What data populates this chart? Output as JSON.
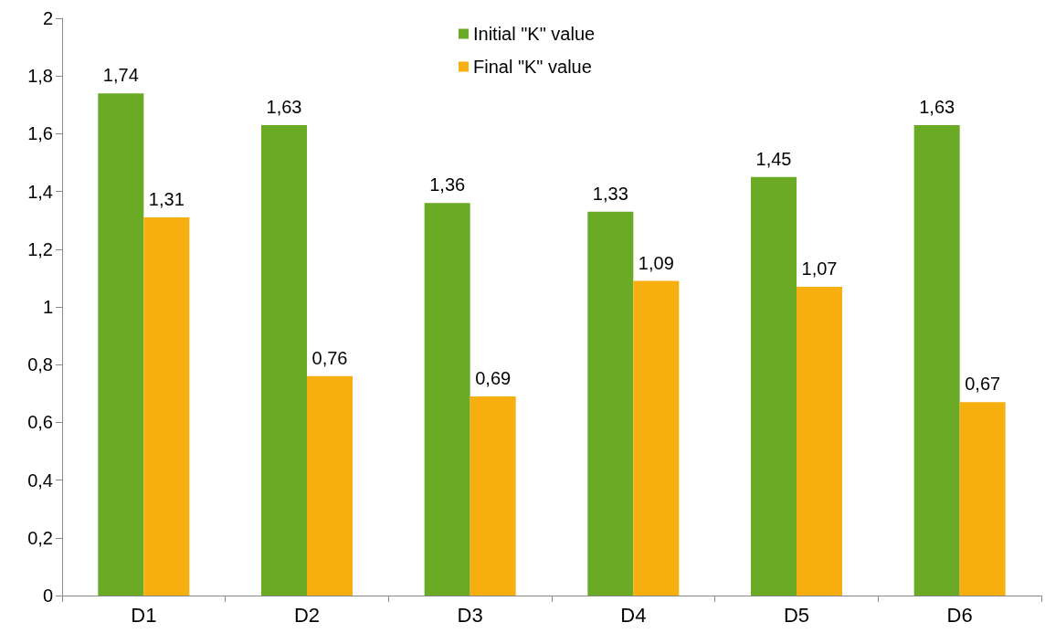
{
  "chart_data": {
    "type": "bar",
    "categories": [
      "D1",
      "D2",
      "D3",
      "D4",
      "D5",
      "D6"
    ],
    "series": [
      {
        "name": "Initial \"K\" value",
        "color": "#6aaa25",
        "values": [
          1.74,
          1.63,
          1.36,
          1.33,
          1.45,
          1.63
        ],
        "value_labels": [
          "1,74",
          "1,63",
          "1,36",
          "1,33",
          "1,45",
          "1,63"
        ]
      },
      {
        "name": "Final \"K\" value",
        "color": "#f7af10",
        "values": [
          1.31,
          0.76,
          0.69,
          1.09,
          1.07,
          0.67
        ],
        "value_labels": [
          "1,31",
          "0,76",
          "0,69",
          "1,09",
          "1,07",
          "0,67"
        ]
      }
    ],
    "ylim": [
      0,
      2
    ],
    "yticks": [
      {
        "value": 0,
        "label": "0"
      },
      {
        "value": 0.2,
        "label": "0,2"
      },
      {
        "value": 0.4,
        "label": "0,4"
      },
      {
        "value": 0.6,
        "label": "0,6"
      },
      {
        "value": 0.8,
        "label": "0,8"
      },
      {
        "value": 1,
        "label": "1"
      },
      {
        "value": 1.2,
        "label": "1,2"
      },
      {
        "value": 1.4,
        "label": "1,4"
      },
      {
        "value": 1.6,
        "label": "1,6"
      },
      {
        "value": 1.8,
        "label": "1,8"
      },
      {
        "value": 2,
        "label": "2"
      }
    ],
    "grid": false,
    "legend": "top"
  }
}
